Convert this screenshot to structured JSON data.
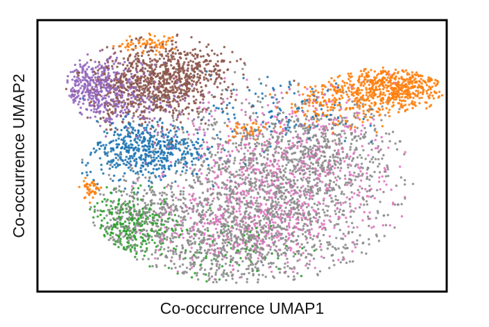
{
  "chart_data": {
    "type": "scatter",
    "title": "",
    "xlabel": "Co-occurrence UMAP1",
    "ylabel": "Co-occurrence UMAP2",
    "xlim": [
      0,
      10
    ],
    "ylim": [
      0,
      6.6
    ],
    "grid": false,
    "legend": "none",
    "ticks": "none",
    "series": [
      {
        "color": "#8c8c8c",
        "clusters": [
          {
            "cx": 5.7,
            "cy": 2.4,
            "sx": 1.55,
            "sy": 1.05,
            "n": 1400
          },
          {
            "cx": 4.6,
            "cy": 1.2,
            "sx": 1.2,
            "sy": 0.55,
            "n": 500
          },
          {
            "cx": 6.9,
            "cy": 3.5,
            "sx": 0.8,
            "sy": 0.6,
            "n": 300
          },
          {
            "cx": 2.4,
            "cy": 1.8,
            "sx": 0.6,
            "sy": 0.5,
            "n": 250
          }
        ]
      },
      {
        "color": "#e377c2",
        "clusters": [
          {
            "cx": 6.1,
            "cy": 2.9,
            "sx": 1.3,
            "sy": 1.0,
            "n": 650
          },
          {
            "cx": 4.9,
            "cy": 1.6,
            "sx": 1.0,
            "sy": 0.6,
            "n": 250
          }
        ]
      },
      {
        "color": "#1f77b4",
        "clusters": [
          {
            "cx": 2.6,
            "cy": 3.45,
            "sx": 0.75,
            "sy": 0.35,
            "n": 520
          },
          {
            "cx": 6.0,
            "cy": 4.4,
            "sx": 0.9,
            "sy": 0.45,
            "n": 110
          }
        ]
      },
      {
        "color": "#8c564b",
        "clusters": [
          {
            "cx": 2.8,
            "cy": 5.0,
            "sx": 0.75,
            "sy": 0.45,
            "n": 750
          },
          {
            "cx": 3.7,
            "cy": 5.4,
            "sx": 0.6,
            "sy": 0.3,
            "n": 220
          }
        ]
      },
      {
        "color": "#9467bd",
        "clusters": [
          {
            "cx": 1.45,
            "cy": 4.95,
            "sx": 0.45,
            "sy": 0.33,
            "n": 380
          },
          {
            "cx": 2.5,
            "cy": 4.6,
            "sx": 0.75,
            "sy": 0.5,
            "n": 140
          }
        ]
      },
      {
        "color": "#ff7f0e",
        "clusters": [
          {
            "cx": 8.7,
            "cy": 4.95,
            "sx": 0.8,
            "sy": 0.28,
            "n": 560
          },
          {
            "cx": 7.2,
            "cy": 4.6,
            "sx": 0.6,
            "sy": 0.3,
            "n": 150
          },
          {
            "cx": 2.7,
            "cy": 6.0,
            "sx": 0.5,
            "sy": 0.12,
            "n": 70
          },
          {
            "cx": 1.3,
            "cy": 2.5,
            "sx": 0.12,
            "sy": 0.15,
            "n": 45
          },
          {
            "cx": 5.1,
            "cy": 3.9,
            "sx": 0.25,
            "sy": 0.12,
            "n": 40
          }
        ]
      },
      {
        "color": "#2ca02c",
        "clusters": [
          {
            "cx": 2.3,
            "cy": 1.6,
            "sx": 0.55,
            "sy": 0.38,
            "n": 260
          },
          {
            "cx": 4.7,
            "cy": 1.0,
            "sx": 1.0,
            "sy": 0.4,
            "n": 70
          }
        ]
      }
    ]
  }
}
